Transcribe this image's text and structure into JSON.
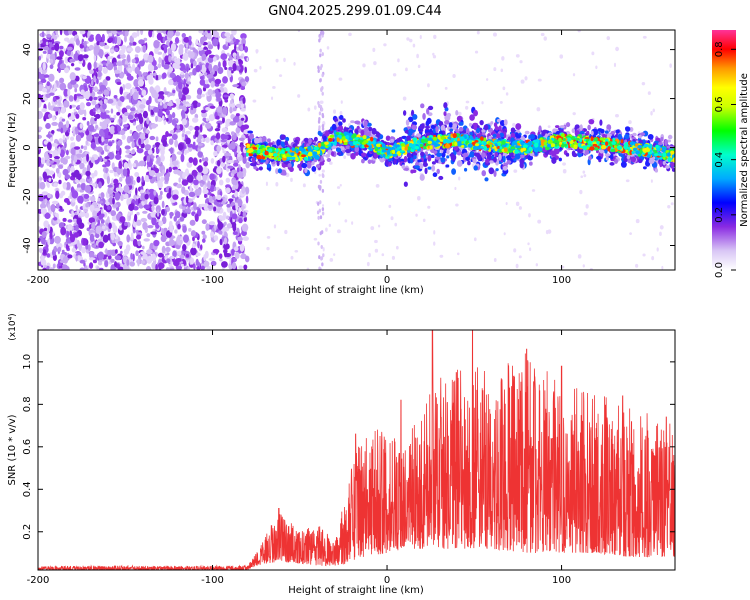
{
  "title": "GN04.2025.299.01.09.C44",
  "chart_data": [
    {
      "type": "heatmap",
      "title": "GN04.2025.299.01.09.C44",
      "xlabel": "Height of straight line (km)",
      "ylabel": "Frequency (Hz)",
      "xlim": [
        -200,
        165
      ],
      "ylim": [
        -50,
        48
      ],
      "xticks": [
        -200,
        -100,
        0,
        100
      ],
      "xtick_labels": [
        "-200",
        "-100",
        "0",
        "100"
      ],
      "yticks": [
        -40,
        -20,
        0,
        20,
        40
      ],
      "ytick_labels": [
        "-40",
        "-20",
        "0",
        "20",
        "40"
      ],
      "colorbar": {
        "label": "Normalized spectral amplitude",
        "range": [
          0.0,
          0.87
        ],
        "ticks": [
          0.0,
          0.2,
          0.4,
          0.6,
          0.8
        ],
        "tick_labels": [
          "0.0",
          "0.2",
          "0.4",
          "0.6",
          "0.8"
        ]
      },
      "features": {
        "noise_region_x": [
          -200,
          -80
        ],
        "signal_band_x": [
          -80,
          165
        ],
        "signal_center_freq_hz": [
          {
            "x": -80,
            "f": -1
          },
          {
            "x": -60,
            "f": -3
          },
          {
            "x": -40,
            "f": -2
          },
          {
            "x": -30,
            "f": 4
          },
          {
            "x": -10,
            "f": 2
          },
          {
            "x": 0,
            "f": -2
          },
          {
            "x": 20,
            "f": 2
          },
          {
            "x": 40,
            "f": 3
          },
          {
            "x": 60,
            "f": 1
          },
          {
            "x": 80,
            "f": 0
          },
          {
            "x": 100,
            "f": 3
          },
          {
            "x": 130,
            "f": 1
          },
          {
            "x": 165,
            "f": -3
          }
        ],
        "vertical_streak_x": -38
      }
    },
    {
      "type": "line",
      "xlabel": "Height of straight line (km)",
      "ylabel": "SNR (10 * v/v)",
      "y_multiplier_label": "(x10⁴)",
      "xlim": [
        -200,
        165
      ],
      "ylim": [
        0.02,
        1.15
      ],
      "xticks": [
        -200,
        -100,
        0,
        100
      ],
      "xtick_labels": [
        "-200",
        "-100",
        "0",
        "100"
      ],
      "yticks": [
        0.2,
        0.4,
        0.6,
        0.8,
        1.0
      ],
      "ytick_labels": [
        "0.2",
        "0.4",
        "0.6",
        "0.8",
        "1.0"
      ],
      "color": "#ee3333",
      "series": [
        {
          "name": "SNR",
          "envelope": [
            {
              "x": -200,
              "base": 0.02,
              "peak": 0.04
            },
            {
              "x": -80,
              "base": 0.02,
              "peak": 0.04
            },
            {
              "x": -75,
              "base": 0.04,
              "peak": 0.1
            },
            {
              "x": -62,
              "base": 0.06,
              "peak": 0.3
            },
            {
              "x": -50,
              "base": 0.05,
              "peak": 0.2
            },
            {
              "x": -40,
              "base": 0.04,
              "peak": 0.25
            },
            {
              "x": -30,
              "base": 0.04,
              "peak": 0.15
            },
            {
              "x": -22,
              "base": 0.05,
              "peak": 0.45
            },
            {
              "x": -15,
              "base": 0.08,
              "peak": 0.65
            },
            {
              "x": 0,
              "base": 0.1,
              "peak": 0.7
            },
            {
              "x": 10,
              "base": 0.12,
              "peak": 0.6
            },
            {
              "x": 25,
              "base": 0.12,
              "peak": 0.9
            },
            {
              "x": 45,
              "base": 0.12,
              "peak": 1.0
            },
            {
              "x": 60,
              "base": 0.12,
              "peak": 0.95
            },
            {
              "x": 80,
              "base": 0.1,
              "peak": 1.05
            },
            {
              "x": 100,
              "base": 0.1,
              "peak": 0.9
            },
            {
              "x": 120,
              "base": 0.1,
              "peak": 0.85
            },
            {
              "x": 140,
              "base": 0.08,
              "peak": 0.8
            },
            {
              "x": 165,
              "base": 0.08,
              "peak": 0.7
            }
          ],
          "spikes": [
            {
              "x": 26,
              "y": 1.15
            },
            {
              "x": 49,
              "y": 1.15
            },
            {
              "x": 80,
              "y": 1.06
            },
            {
              "x": 8,
              "y": 0.82
            },
            {
              "x": -18,
              "y": 0.66
            },
            {
              "x": -62,
              "y": 0.31
            },
            {
              "x": 100,
              "y": 0.98
            },
            {
              "x": 135,
              "y": 0.84
            },
            {
              "x": 160,
              "y": 0.74
            }
          ]
        }
      ]
    }
  ]
}
